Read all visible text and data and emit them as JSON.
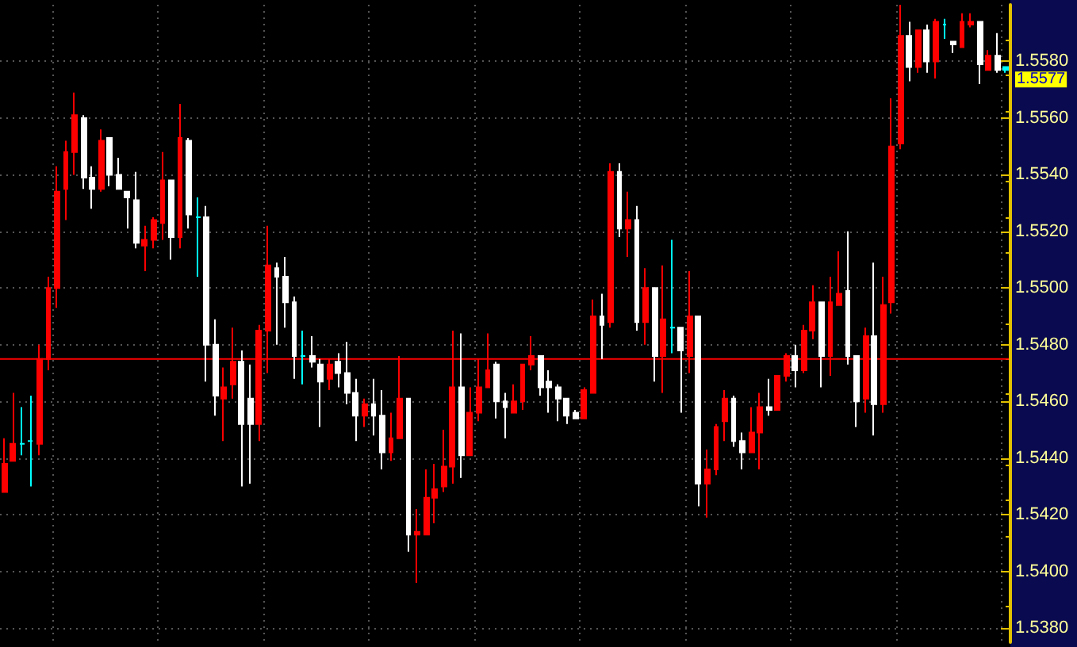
{
  "chart_data": {
    "type": "candlestick",
    "categories": [
      null,
      null,
      null,
      null,
      null,
      null,
      null,
      null,
      null,
      null,
      null,
      null,
      null,
      null,
      null,
      null,
      null,
      null,
      null,
      null,
      null,
      null,
      null,
      null,
      null,
      null,
      null,
      null,
      null,
      null,
      null,
      null,
      null,
      null,
      null,
      null,
      null,
      null,
      null,
      null,
      null,
      null,
      null,
      null,
      null,
      null,
      null,
      null,
      null,
      null,
      null,
      null,
      null,
      null,
      null,
      null,
      null,
      null,
      null,
      null,
      null,
      null,
      null,
      null,
      null,
      null,
      null,
      null,
      null,
      null,
      null,
      null,
      null,
      null,
      null,
      null,
      null,
      null,
      null,
      null,
      null,
      null,
      null,
      null,
      null,
      null,
      null,
      null,
      null,
      null,
      null,
      null,
      null,
      null,
      null,
      null,
      null,
      null,
      null,
      null,
      null,
      null,
      null,
      null,
      null,
      null,
      null,
      null,
      null,
      null,
      null,
      null,
      null,
      null,
      null
    ],
    "ohlc": [
      [
        1.5428,
        1.5447,
        1.5428,
        1.5438
      ],
      [
        1.5439,
        1.5463,
        1.5439,
        1.5445
      ],
      [
        1.5445,
        1.5458,
        1.5441,
        1.5445
      ],
      [
        1.5446,
        1.5462,
        1.543,
        1.5446
      ],
      [
        1.5445,
        1.548,
        1.5441,
        1.5475
      ],
      [
        1.5475,
        1.5504,
        1.5471,
        1.55
      ],
      [
        1.55,
        1.5543,
        1.5493,
        1.5534
      ],
      [
        1.5535,
        1.5552,
        1.5524,
        1.5548
      ],
      [
        1.5548,
        1.5569,
        1.554,
        1.5561
      ],
      [
        1.556,
        1.5561,
        1.5535,
        1.5539
      ],
      [
        1.5539,
        1.5543,
        1.5528,
        1.5535
      ],
      [
        1.5535,
        1.5556,
        1.5534,
        1.5552
      ],
      [
        1.5553,
        1.5553,
        1.5536,
        1.554
      ],
      [
        1.554,
        1.5546,
        1.5535,
        1.5535
      ],
      [
        1.5534,
        1.5534,
        1.5521,
        1.5532
      ],
      [
        1.5531,
        1.5541,
        1.5514,
        1.5516
      ],
      [
        1.5515,
        1.5522,
        1.5506,
        1.5517
      ],
      [
        1.5517,
        1.5525,
        1.5514,
        1.5524
      ],
      [
        1.5523,
        1.5548,
        1.5517,
        1.5538
      ],
      [
        1.5538,
        1.5538,
        1.551,
        1.5518
      ],
      [
        1.5518,
        1.5565,
        1.5514,
        1.5553
      ],
      [
        1.5552,
        1.5553,
        1.5521,
        1.5526
      ],
      [
        1.5525,
        1.5532,
        1.5504,
        1.5525
      ],
      [
        1.5525,
        1.5529,
        1.5467,
        1.548
      ],
      [
        1.548,
        1.5489,
        1.5455,
        1.5462
      ],
      [
        1.5461,
        1.5472,
        1.5446,
        1.5465
      ],
      [
        1.5466,
        1.5486,
        1.5461,
        1.5474
      ],
      [
        1.5474,
        1.5478,
        1.543,
        1.5452
      ],
      [
        1.5461,
        1.5473,
        1.5431,
        1.5452
      ],
      [
        1.5452,
        1.5487,
        1.5446,
        1.5485
      ],
      [
        1.5485,
        1.5522,
        1.547,
        1.5508
      ],
      [
        1.5507,
        1.5509,
        1.548,
        1.5504
      ],
      [
        1.5504,
        1.5511,
        1.5486,
        1.5495
      ],
      [
        1.5495,
        1.5497,
        1.5468,
        1.5476
      ],
      [
        1.5476,
        1.5485,
        1.5466,
        1.5476
      ],
      [
        1.5476,
        1.5483,
        1.5472,
        1.5474
      ],
      [
        1.5473,
        1.5475,
        1.5451,
        1.5467
      ],
      [
        1.5468,
        1.5475,
        1.5464,
        1.5473
      ],
      [
        1.5474,
        1.5477,
        1.5465,
        1.547
      ],
      [
        1.547,
        1.5481,
        1.5459,
        1.5463
      ],
      [
        1.5463,
        1.5468,
        1.5446,
        1.5455
      ],
      [
        1.5455,
        1.5461,
        1.5451,
        1.5459
      ],
      [
        1.5459,
        1.5468,
        1.5448,
        1.5455
      ],
      [
        1.5455,
        1.5464,
        1.5436,
        1.5442
      ],
      [
        1.5442,
        1.5456,
        1.5439,
        1.5447
      ],
      [
        1.5447,
        1.5476,
        1.5447,
        1.5461
      ],
      [
        1.5461,
        1.5461,
        1.5407,
        1.5413
      ],
      [
        1.5413,
        1.5422,
        1.5396,
        1.5414
      ],
      [
        1.5413,
        1.5436,
        1.5413,
        1.5426
      ],
      [
        1.5426,
        1.5438,
        1.5417,
        1.5429
      ],
      [
        1.543,
        1.545,
        1.5428,
        1.5437
      ],
      [
        1.5437,
        1.5485,
        1.5431,
        1.5465
      ],
      [
        1.5465,
        1.5484,
        1.5433,
        1.5441
      ],
      [
        1.5441,
        1.5465,
        1.5441,
        1.5456
      ],
      [
        1.5456,
        1.5475,
        1.5453,
        1.5465
      ],
      [
        1.5465,
        1.5484,
        1.5465,
        1.5471
      ],
      [
        1.5473,
        1.5474,
        1.5454,
        1.546
      ],
      [
        1.546,
        1.5463,
        1.5447,
        1.5458
      ],
      [
        1.5456,
        1.5466,
        1.5456,
        1.546
      ],
      [
        1.546,
        1.5473,
        1.5457,
        1.5473
      ],
      [
        1.5473,
        1.5483,
        1.5471,
        1.5476
      ],
      [
        1.5476,
        1.5476,
        1.5462,
        1.5465
      ],
      [
        1.5467,
        1.5471,
        1.5456,
        1.5465
      ],
      [
        1.5465,
        1.5466,
        1.5453,
        1.5461
      ],
      [
        1.5461,
        1.5461,
        1.5452,
        1.5455
      ],
      [
        1.5456,
        1.5457,
        1.5454,
        1.5454
      ],
      [
        1.5454,
        1.5465,
        1.5454,
        1.5464
      ],
      [
        1.5463,
        1.5496,
        1.5463,
        1.549
      ],
      [
        1.549,
        1.5498,
        1.5475,
        1.5487
      ],
      [
        1.5488,
        1.5544,
        1.5486,
        1.5541
      ],
      [
        1.5541,
        1.5544,
        1.5518,
        1.5521
      ],
      [
        1.5521,
        1.5534,
        1.5511,
        1.5524
      ],
      [
        1.5524,
        1.5529,
        1.5485,
        1.5488
      ],
      [
        1.5488,
        1.5507,
        1.548,
        1.55
      ],
      [
        1.55,
        1.55,
        1.5467,
        1.5476
      ],
      [
        1.5476,
        1.5508,
        1.5463,
        1.5489
      ],
      [
        1.5486,
        1.5517,
        1.5477,
        1.5486
      ],
      [
        1.5486,
        1.5486,
        1.5456,
        1.5478
      ],
      [
        1.5476,
        1.5506,
        1.547,
        1.549
      ],
      [
        1.549,
        1.549,
        1.5423,
        1.5431
      ],
      [
        1.5431,
        1.5443,
        1.5419,
        1.5436
      ],
      [
        1.5436,
        1.5452,
        1.5434,
        1.5451
      ],
      [
        1.5453,
        1.5464,
        1.5446,
        1.5461
      ],
      [
        1.5461,
        1.5462,
        1.5444,
        1.5446
      ],
      [
        1.5446,
        1.5449,
        1.5436,
        1.5442
      ],
      [
        1.5442,
        1.5458,
        1.5442,
        1.5449
      ],
      [
        1.5449,
        1.5463,
        1.5436,
        1.5458
      ],
      [
        1.5458,
        1.5468,
        1.5455,
        1.5457
      ],
      [
        1.5457,
        1.5469,
        1.5457,
        1.5469
      ],
      [
        1.5469,
        1.5477,
        1.5467,
        1.5476
      ],
      [
        1.5476,
        1.548,
        1.5465,
        1.5471
      ],
      [
        1.5471,
        1.5487,
        1.547,
        1.5485
      ],
      [
        1.5485,
        1.5501,
        1.5482,
        1.5495
      ],
      [
        1.5495,
        1.5495,
        1.5465,
        1.5476
      ],
      [
        1.5476,
        1.5504,
        1.5469,
        1.5495
      ],
      [
        1.5494,
        1.5513,
        1.5494,
        1.5498
      ],
      [
        1.5499,
        1.552,
        1.5473,
        1.5476
      ],
      [
        1.5476,
        1.5476,
        1.5451,
        1.546
      ],
      [
        1.5461,
        1.5486,
        1.5456,
        1.5483
      ],
      [
        1.5483,
        1.5509,
        1.5448,
        1.5459
      ],
      [
        1.5459,
        1.5504,
        1.5456,
        1.5494
      ],
      [
        1.5495,
        1.5567,
        1.5491,
        1.555
      ],
      [
        1.5551,
        1.56,
        1.5549,
        1.5589
      ],
      [
        1.5589,
        1.5594,
        1.5573,
        1.5578
      ],
      [
        1.5578,
        1.5591,
        1.5576,
        1.5591
      ],
      [
        1.5591,
        1.5593,
        1.5576,
        1.558
      ],
      [
        1.558,
        1.5595,
        1.5574,
        1.5594
      ],
      [
        1.5593,
        1.5595,
        1.5588,
        1.5593
      ],
      [
        1.5587,
        1.5587,
        1.5583,
        1.5586
      ],
      [
        1.5585,
        1.5597,
        1.5585,
        1.5594
      ],
      [
        1.5593,
        1.5597,
        1.5592,
        1.5594
      ],
      [
        1.5594,
        1.5594,
        1.5572,
        1.5579
      ],
      [
        1.5577,
        1.5584,
        1.5577,
        1.5582
      ],
      [
        1.5582,
        1.559,
        1.5576,
        1.5577
      ],
      [
        1.5578,
        1.5578,
        1.5576,
        1.5577
      ]
    ],
    "colors": [
      "#ff0000",
      "#ff0000",
      "#00ffff",
      "#00ffff",
      "#ff0000",
      "#ff0000",
      "#ff0000",
      "#ff0000",
      "#ff0000",
      "#ffffff",
      "#ffffff",
      "#ff0000",
      "#ffffff",
      "#ffffff",
      "#ffffff",
      "#ffffff",
      "#ff0000",
      "#ff0000",
      "#ff0000",
      "#ffffff",
      "#ff0000",
      "#ffffff",
      "#00ffff",
      "#ffffff",
      "#ffffff",
      "#ff0000",
      "#ff0000",
      "#ffffff",
      "#ffffff",
      "#ff0000",
      "#ff0000",
      "#ffffff",
      "#ffffff",
      "#ffffff",
      "#00ffff",
      "#ffffff",
      "#ffffff",
      "#ff0000",
      "#ffffff",
      "#ffffff",
      "#ffffff",
      "#ff0000",
      "#ffffff",
      "#ffffff",
      "#ff0000",
      "#ff0000",
      "#ffffff",
      "#ff0000",
      "#ff0000",
      "#ff0000",
      "#ff0000",
      "#ff0000",
      "#ffffff",
      "#ff0000",
      "#ff0000",
      "#ff0000",
      "#ffffff",
      "#ffffff",
      "#ff0000",
      "#ff0000",
      "#ff0000",
      "#ffffff",
      "#ffffff",
      "#ffffff",
      "#ffffff",
      "#ffffff",
      "#ff0000",
      "#ff0000",
      "#ffffff",
      "#ff0000",
      "#ffffff",
      "#ff0000",
      "#ffffff",
      "#ff0000",
      "#ffffff",
      "#ff0000",
      "#00ffff",
      "#ffffff",
      "#ff0000",
      "#ffffff",
      "#ff0000",
      "#ff0000",
      "#ff0000",
      "#ffffff",
      "#ffffff",
      "#ff0000",
      "#ff0000",
      "#ffffff",
      "#ff0000",
      "#ff0000",
      "#ffffff",
      "#ff0000",
      "#ff0000",
      "#ffffff",
      "#ff0000",
      "#ff0000",
      "#ffffff",
      "#ffffff",
      "#ff0000",
      "#ffffff",
      "#ff0000",
      "#ff0000",
      "#ff0000",
      "#ffffff",
      "#ff0000",
      "#ffffff",
      "#ff0000",
      "#00ffff",
      "#ffffff",
      "#ff0000",
      "#ff0000",
      "#ffffff",
      "#ff0000",
      "#ffffff",
      "#00ffff"
    ],
    "ylim": [
      1.5375,
      1.56
    ],
    "yticks": [
      {
        "value": 1.538,
        "label": "1.5380"
      },
      {
        "value": 1.54,
        "label": "1.5400"
      },
      {
        "value": 1.542,
        "label": "1.5420"
      },
      {
        "value": 1.544,
        "label": "1.5440"
      },
      {
        "value": 1.546,
        "label": "1.5460"
      },
      {
        "value": 1.548,
        "label": "1.5480"
      },
      {
        "value": 1.55,
        "label": "1.5500"
      },
      {
        "value": 1.552,
        "label": "1.5520"
      },
      {
        "value": 1.554,
        "label": "1.5540"
      },
      {
        "value": 1.556,
        "label": "1.5560"
      },
      {
        "value": 1.558,
        "label": "1.5580"
      }
    ],
    "ref_lines": [
      {
        "axis": "y",
        "value": 1.5475,
        "color": "#ff0000"
      }
    ],
    "annotations": [
      "1.5577"
    ],
    "grid": true,
    "tick_labels": "y"
  }
}
